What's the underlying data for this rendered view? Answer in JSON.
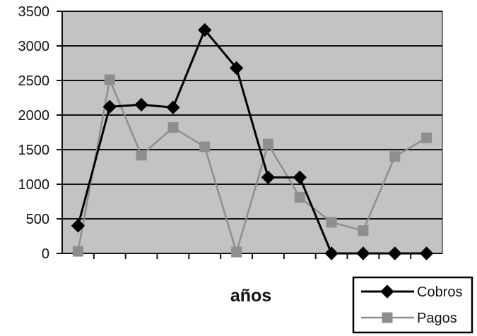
{
  "chart_data": {
    "type": "line",
    "xlabel": "años",
    "ylabel": "",
    "ylim": [
      0,
      3500
    ],
    "yticks": [
      0,
      500,
      1000,
      1500,
      2000,
      2500,
      3000,
      3500
    ],
    "x": [
      1,
      2,
      3,
      4,
      5,
      6,
      7,
      8,
      9,
      10,
      11,
      12
    ],
    "grid": true,
    "legend_position": "bottom-right",
    "colors": {
      "plot_background": "#c3c3c3",
      "cobros": "#000000",
      "pagos": "#8e8e8e"
    },
    "series": [
      {
        "name": "Cobros",
        "marker": "diamond",
        "values": [
          400,
          2120,
          2150,
          2110,
          3230,
          2680,
          1100,
          1100,
          0,
          0,
          0,
          0
        ]
      },
      {
        "name": "Pagos",
        "marker": "square",
        "values": [
          30,
          2510,
          1420,
          1820,
          1540,
          20,
          1580,
          810,
          450,
          330,
          1400,
          1670
        ]
      }
    ]
  }
}
